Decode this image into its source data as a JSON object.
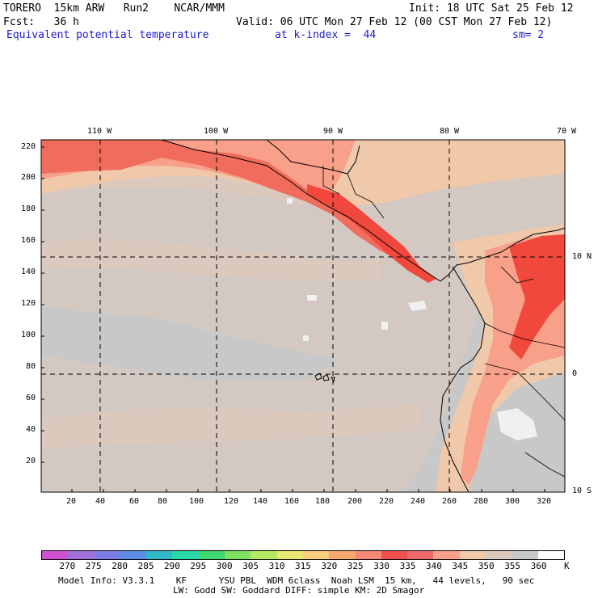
{
  "header": {
    "model": "TORERO  15km ARW   Run2    NCAR/MMM",
    "init": "Init: 18 UTC Sat 25 Feb 12",
    "fcst": "Fcst:   36 h",
    "valid": "Valid: 06 UTC Mon 27 Feb 12 (00 CST Mon 27 Feb 12)",
    "field": "Equivalent potential temperature",
    "level": "at k-index =  44",
    "smooth": "sm= 2"
  },
  "map": {
    "top_lon_labels": [
      "110 W",
      "100 W",
      "90 W",
      "80 W",
      "70 W"
    ],
    "right_lat_labels": [
      "10 N",
      "0",
      "10 S"
    ],
    "left_y_ticks": [
      "220",
      "200",
      "180",
      "160",
      "140",
      "120",
      "100",
      "80",
      "60",
      "40",
      "20"
    ],
    "bottom_x_ticks": [
      "20",
      "40",
      "60",
      "80",
      "100",
      "120",
      "140",
      "160",
      "180",
      "200",
      "220",
      "240",
      "260",
      "280",
      "300",
      "320"
    ],
    "colors": {
      "background": "#c8c8c8",
      "warm_light": "#dcc9be",
      "warm_mid": "#f0c8aa",
      "warm_salmon": "#f8a08a",
      "warm_red": "#f06c5c",
      "warm_hot": "#f0483c",
      "cool_white": "#f0f0f0"
    }
  },
  "colorbar": {
    "unit": "K",
    "labels": [
      "270",
      "275",
      "280",
      "285",
      "290",
      "295",
      "300",
      "305",
      "310",
      "315",
      "320",
      "325",
      "330",
      "335",
      "340",
      "345",
      "350",
      "355",
      "360"
    ],
    "swatches": [
      "#d050d0",
      "#a070d8",
      "#7c7ce8",
      "#5a8ce8",
      "#30b8c8",
      "#28d8a8",
      "#40d870",
      "#80e060",
      "#b8e860",
      "#e8e870",
      "#f8d080",
      "#f8a870",
      "#f88878",
      "#f05050",
      "#f06868",
      "#f8a088",
      "#f0c8aa",
      "#dcc9be",
      "#c8c8c8",
      "#ffffff"
    ]
  },
  "footer": {
    "line1": "Model Info: V3.3.1    KF      YSU PBL  WDM 6class  Noah LSM  15 km,   44 levels,   90 sec",
    "line2": "LW: Godd SW: Goddard DIFF: simple KM: 2D Smagor"
  }
}
